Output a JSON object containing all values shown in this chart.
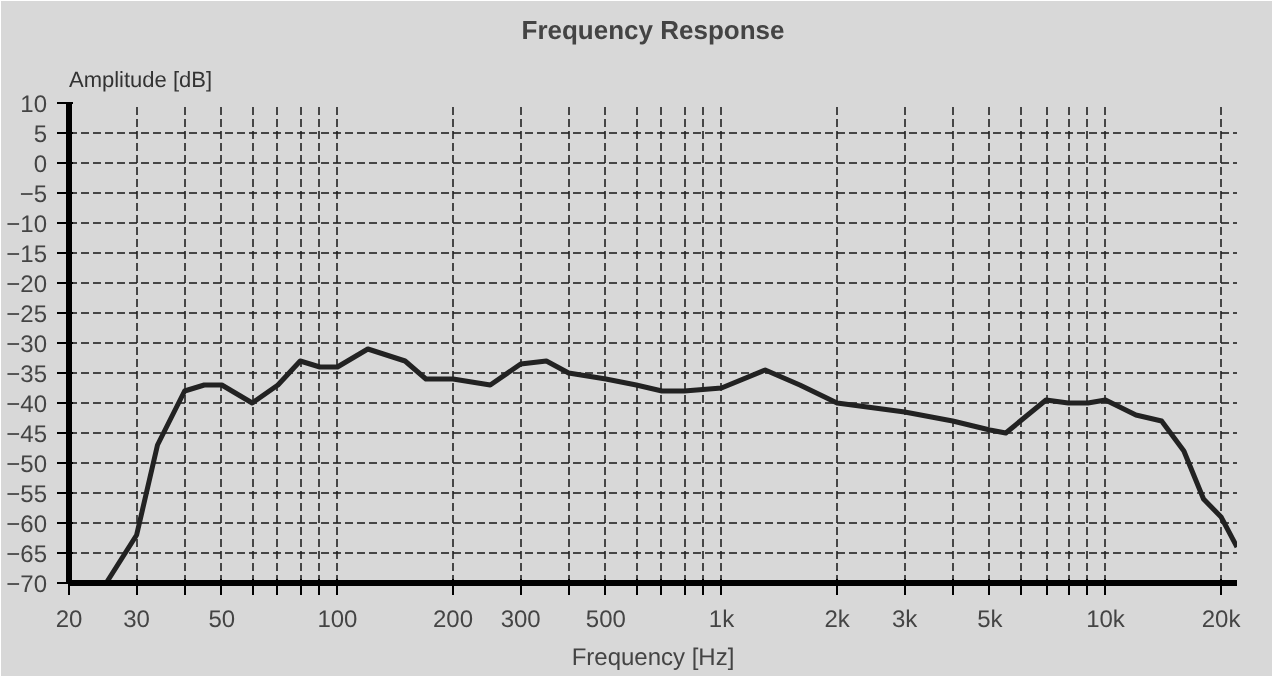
{
  "chart_data": {
    "type": "line",
    "title": "Frequency Response",
    "xlabel": "Frequency [Hz]",
    "ylabel": "Amplitude [dB]",
    "log": "x",
    "grid": true,
    "marker": "none",
    "line_style": "solid",
    "xlim": [
      20,
      22000
    ],
    "ylim": [
      -70,
      10
    ],
    "xticks": [
      20,
      30,
      {
        "value": 40,
        "label": null
      },
      50,
      {
        "value": 60,
        "label": null
      },
      {
        "value": 70,
        "label": null
      },
      {
        "value": 80,
        "label": null
      },
      {
        "value": 90,
        "label": null
      },
      100,
      200,
      300,
      {
        "value": 400,
        "label": null
      },
      500,
      {
        "value": 600,
        "label": null
      },
      {
        "value": 700,
        "label": null
      },
      {
        "value": 800,
        "label": null
      },
      {
        "value": 900,
        "label": null
      },
      {
        "value": 1000,
        "label": "1k"
      },
      {
        "value": 2000,
        "label": "2k"
      },
      {
        "value": 3000,
        "label": "3k"
      },
      {
        "value": 4000,
        "label": null
      },
      {
        "value": 5000,
        "label": "5k"
      },
      {
        "value": 6000,
        "label": null
      },
      {
        "value": 7000,
        "label": null
      },
      {
        "value": 8000,
        "label": null
      },
      {
        "value": 9000,
        "label": null
      },
      {
        "value": 10000,
        "label": "10k"
      },
      {
        "value": 20000,
        "label": "20k"
      }
    ],
    "yticks": [
      10,
      5,
      0,
      -5,
      -10,
      -15,
      -20,
      -25,
      -30,
      -35,
      -40,
      -45,
      -50,
      -55,
      -60,
      -65,
      -70
    ],
    "series": [
      {
        "color": "#222222",
        "x": [
          25,
          30,
          34,
          40,
          45,
          50,
          60,
          70,
          80,
          90,
          100,
          120,
          150,
          170,
          200,
          250,
          300,
          350,
          400,
          500,
          600,
          700,
          800,
          1000,
          1300,
          1600,
          2000,
          3000,
          4000,
          5000,
          5500,
          6000,
          7000,
          8000,
          9000,
          10000,
          12000,
          14000,
          16000,
          18000,
          20000,
          22000
        ],
        "values": [
          -70,
          -62,
          -47,
          -38,
          -37,
          -37,
          -40,
          -37,
          -33,
          -34,
          -34,
          -31,
          -33,
          -36,
          -36,
          -37,
          -33.5,
          -33,
          -35,
          -36,
          -37,
          -38,
          -38,
          -37.5,
          -34.5,
          -37,
          -40,
          -41.5,
          -43,
          -44.5,
          -45,
          -43,
          -39.5,
          -40,
          -40,
          -39.5,
          -42,
          -43,
          -48,
          -56,
          -59,
          -64
        ]
      }
    ]
  }
}
